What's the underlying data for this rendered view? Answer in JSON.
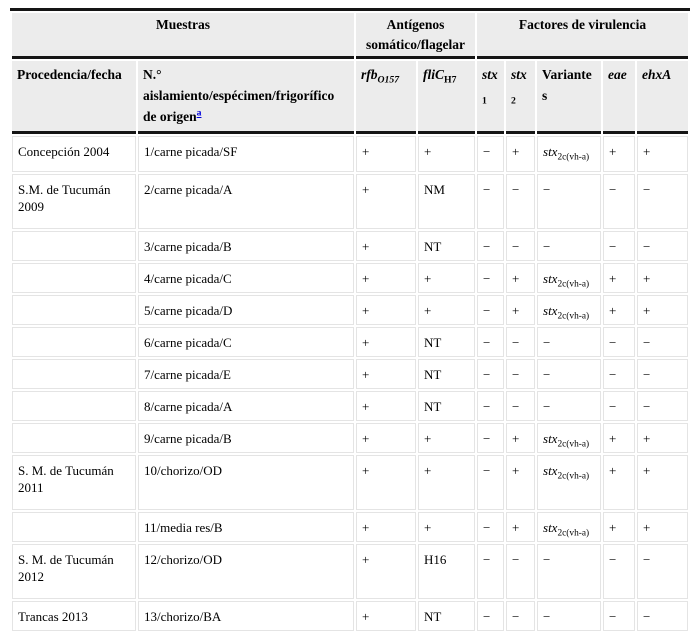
{
  "table": {
    "group_headers": [
      {
        "label": "Muestras",
        "colspan": 2
      },
      {
        "label": "Antígenos somático/flagelar",
        "colspan": 2
      },
      {
        "label": "Factores de virulencia",
        "colspan": 5
      }
    ],
    "column_headers": [
      "Procedencia/fecha",
      "N.° aislamiento/espécimen/frigorífico de origen^{a}",
      "*rfb*_{*O157*}",
      "*fliC*_{H7}",
      "*stx*_{1}",
      "*stx*_{2}",
      "Variantes",
      "*eae*",
      "*ehxA*"
    ],
    "footnote_marker": "a",
    "rows": [
      [
        "Concepción 2004",
        "1/carne picada/SF",
        "+",
        "+",
        "−",
        "+",
        "*stx*_{2c(vh-a)}",
        "+",
        "+"
      ],
      [
        "S.M. de Tucumán 2009",
        "2/carne picada/A",
        "+",
        "NM",
        "−",
        "−",
        "−",
        "−",
        "−"
      ],
      [
        "",
        "3/carne picada/B",
        "+",
        "NT",
        "−",
        "−",
        "−",
        "−",
        "−"
      ],
      [
        "",
        "4/carne picada/C",
        "+",
        "+",
        "−",
        "+",
        "*stx*_{2c(vh-a)}",
        "+",
        "+"
      ],
      [
        "",
        "5/carne picada/D",
        "+",
        "+",
        "−",
        "+",
        "*stx*_{2c(vh-a)}",
        "+",
        "+"
      ],
      [
        "",
        "6/carne picada/C",
        "+",
        "NT",
        "−",
        "−",
        "−",
        "−",
        "−"
      ],
      [
        "",
        "7/carne picada/E",
        "+",
        "NT",
        "−",
        "−",
        "−",
        "−",
        "−"
      ],
      [
        "",
        "8/carne picada/A",
        "+",
        "NT",
        "−",
        "−",
        "−",
        "−",
        "−"
      ],
      [
        "",
        "9/carne picada/B",
        "+",
        "+",
        "−",
        "+",
        "*stx*_{2c(vh-a)}",
        "+",
        "+"
      ],
      [
        "S. M. de Tucumán 2011",
        "10/chorizo/OD",
        "+",
        "+",
        "−",
        "+",
        "*stx*_{2c(vh-a)}",
        "+",
        "+"
      ],
      [
        "",
        "11/media res/B",
        "+",
        "+",
        "−",
        "+",
        "*stx*_{2c(vh-a)}",
        "+",
        "+"
      ],
      [
        "S. M. de Tucumán 2012",
        "12/chorizo/OD",
        "+",
        "H16",
        "−",
        "−",
        "−",
        "−",
        "−"
      ],
      [
        "Trancas 2013",
        "13/chorizo/BA",
        "+",
        "NT",
        "−",
        "−",
        "−",
        "−",
        "−"
      ]
    ],
    "colors": {
      "header_background": "#ececec",
      "rule_black": "#151515",
      "grid_gray": "#e4e4e4",
      "footnote_link": "#0000dd"
    }
  }
}
